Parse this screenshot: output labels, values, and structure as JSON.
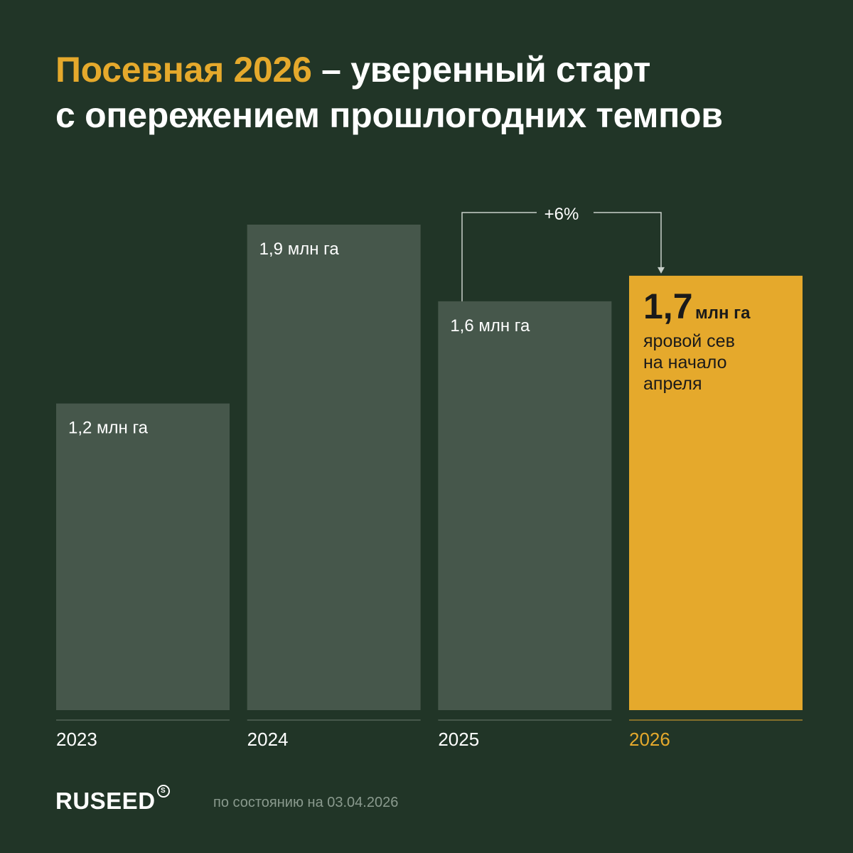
{
  "title": {
    "accent": "Посевная 2026",
    "rest": " – уверенный старт",
    "line2": "с опережением прошлогодних темпов"
  },
  "chart_data": {
    "type": "bar",
    "categories": [
      "2023",
      "2024",
      "2025",
      "2026"
    ],
    "values": [
      1.2,
      1.9,
      1.6,
      1.7
    ],
    "value_labels": [
      "1,2 млн га",
      "1,9 млн га",
      "1,6 млн га",
      "1,7"
    ],
    "highlight": {
      "index": 3,
      "value_text": "1,7",
      "unit": "млн га",
      "note": [
        "яровой сев",
        "на начало",
        "апреля"
      ]
    },
    "annotation": {
      "text": "+6%",
      "from": "2025",
      "to": "2026"
    },
    "colors": {
      "bar": "#46574b",
      "highlight": "#e5a92c",
      "background": "#213527"
    }
  },
  "footer": {
    "logo": "RUSEED",
    "logo_mark": "S",
    "date_note": "по состоянию на 03.04.2026"
  }
}
